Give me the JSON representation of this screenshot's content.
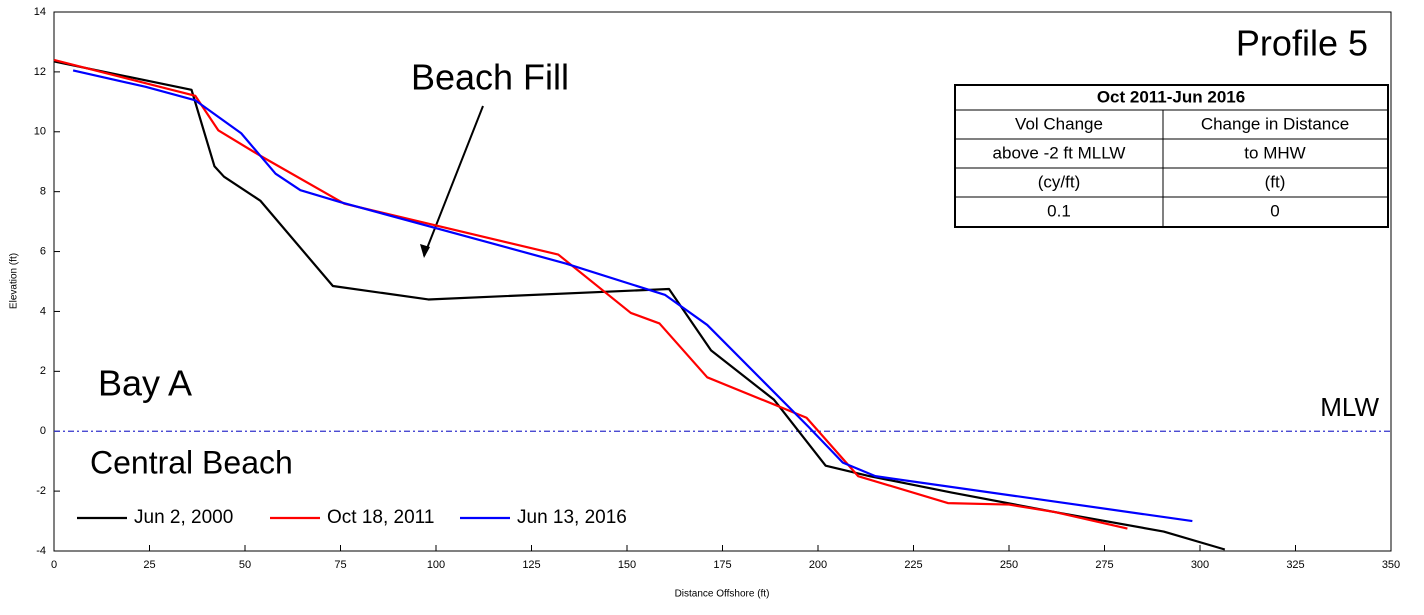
{
  "chart_data": {
    "type": "line",
    "x_label": "Distance Offshore (ft)",
    "y_label": "Elevation (ft)",
    "xlim": [
      0,
      350
    ],
    "xticks": [
      0,
      25,
      50,
      75,
      100,
      125,
      150,
      175,
      200,
      225,
      250,
      275,
      300,
      325,
      350
    ],
    "ylim": [
      -4,
      14
    ],
    "yticks": [
      -4,
      -2,
      0,
      2,
      4,
      6,
      8,
      10,
      12,
      14
    ],
    "reference_line": {
      "value": 0,
      "label": "MLW",
      "color": "#3333cc"
    },
    "annotations": [
      "Profile 5",
      "Beach Fill",
      "Bay A",
      "Central Beach"
    ],
    "table": {
      "title": "Oct 2011-Jun 2016",
      "rows": [
        [
          "Vol Change",
          "Change in Distance"
        ],
        [
          "above -2 ft MLLW",
          "to MHW"
        ],
        [
          "(cy/ft)",
          "(ft)"
        ],
        [
          "0.1",
          "0"
        ]
      ]
    },
    "legend": "lower left",
    "series": [
      {
        "name": "Jun 2, 2000",
        "color": "#000000",
        "x": [
          0,
          36,
          42,
          44.5,
          54,
          73,
          98,
          161,
          172,
          188.5,
          202,
          213.5,
          235,
          262,
          290.5,
          306.5
        ],
        "values": [
          12.35,
          11.4,
          8.85,
          8.5,
          7.7,
          4.85,
          4.4,
          4.75,
          2.7,
          1.05,
          -1.15,
          -1.5,
          -2.05,
          -2.7,
          -3.35,
          -3.95
        ]
      },
      {
        "name": "Oct 18, 2011",
        "color": "#ff0000",
        "x": [
          0,
          37,
          43,
          54,
          76,
          132,
          151,
          158.5,
          171,
          197,
          210.5,
          234,
          250,
          262,
          281
        ],
        "values": [
          12.4,
          11.2,
          10.05,
          9.2,
          7.6,
          5.9,
          3.95,
          3.6,
          1.8,
          0.45,
          -1.5,
          -2.4,
          -2.45,
          -2.7,
          -3.25
        ]
      },
      {
        "name": "Jun 13, 2016",
        "color": "#0000ff",
        "x": [
          5,
          24,
          37,
          49,
          58,
          64.5,
          75,
          134,
          160,
          171,
          197.5,
          206.5,
          215,
          298
        ],
        "values": [
          12.05,
          11.5,
          11.05,
          9.95,
          8.6,
          8.05,
          7.65,
          5.6,
          4.55,
          3.55,
          0.15,
          -1.05,
          -1.5,
          -3.0
        ]
      }
    ]
  }
}
